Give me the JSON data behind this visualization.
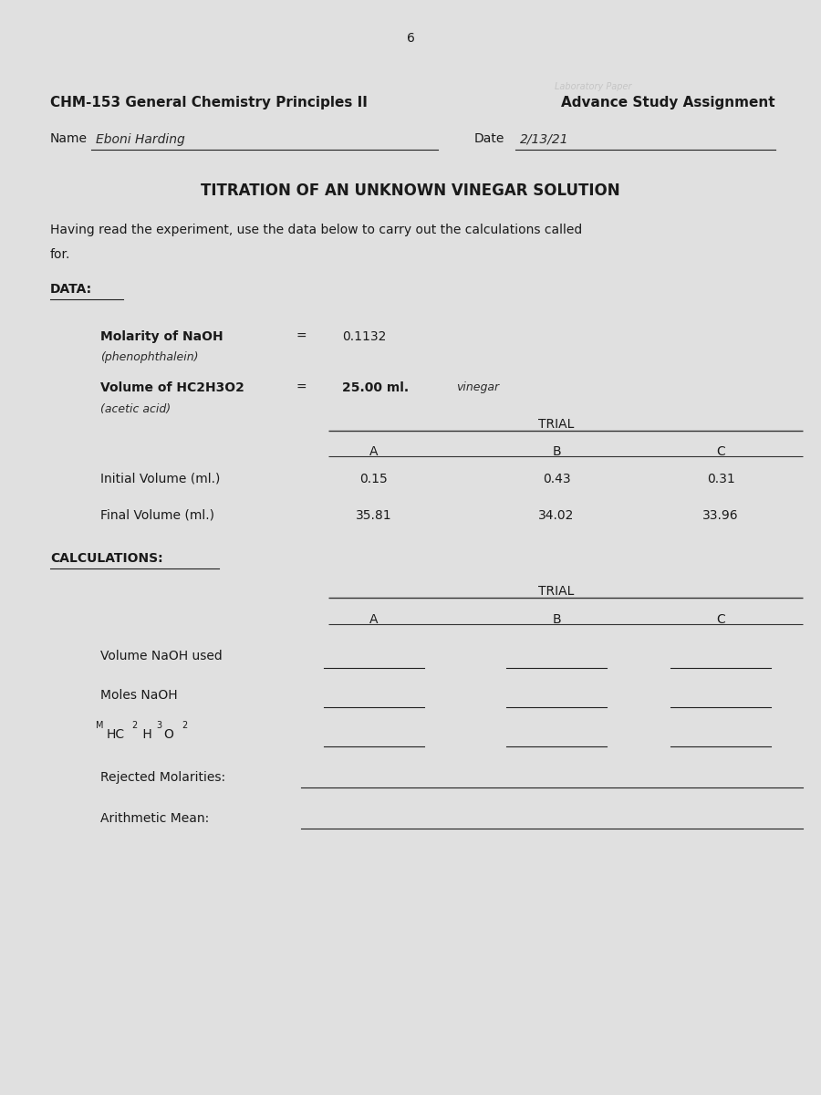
{
  "page_number": "6",
  "header_left": "CHM-153 General Chemistry Principles II",
  "header_right": "Advance Study Assignment",
  "name_label": "Name",
  "name_value": "Eboni Harding",
  "date_label": "Date",
  "date_value": "2/13/21",
  "title": "TITRATION OF AN UNKNOWN VINEGAR SOLUTION",
  "intro": "Having read the experiment, use the data below to carry out the calculations called",
  "intro2": "for.",
  "data_label": "DATA:",
  "molarity_label": "Molarity of NaOH",
  "molarity_sublabel": "(phenophthalein)",
  "molarity_eq": "=",
  "molarity_value": "0.1132",
  "volume_label": "Volume of HC2H3O2",
  "volume_sublabel": "(acetic acid)",
  "volume_eq": "=",
  "volume_value": "25.00 ml.",
  "volume_note": "vinegar",
  "trial_header": "TRIAL",
  "trial_cols": [
    "A",
    "B",
    "C"
  ],
  "initial_label": "Initial Volume (ml.)",
  "initial_values": [
    "0.15",
    "0.43",
    "0.31"
  ],
  "final_label": "Final Volume (ml.)",
  "final_values": [
    "35.81",
    "34.02",
    "33.96"
  ],
  "calc_label": "CALCULATIONS:",
  "vol_naoh_label": "Volume NaOH used",
  "moles_naoh_label": "Moles NaOH",
  "rejected_label": "Rejected Molarities:",
  "mean_label": "Arithmetic Mean:",
  "paper_color": "#e0e0e0",
  "text_color": "#1a1a1a",
  "handwriting_color": "#2a2a2a",
  "font_size_header": 11,
  "font_size_title": 12,
  "font_size_body": 10,
  "font_size_small": 9
}
